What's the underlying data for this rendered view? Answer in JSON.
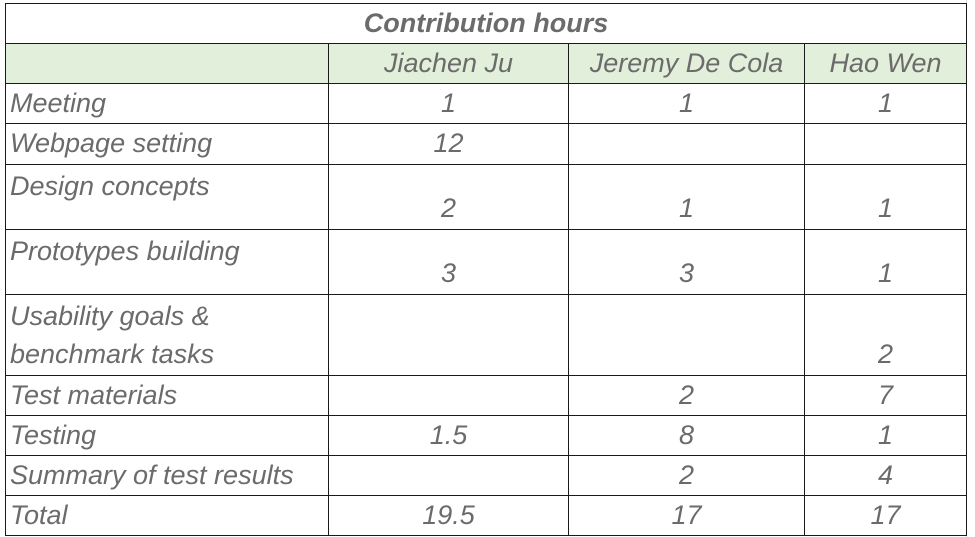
{
  "title": "Contribution hours",
  "columns": [
    "",
    "Jiachen Ju",
    "Jeremy De Cola",
    "Hao Wen"
  ],
  "rows": [
    {
      "task": "Meeting",
      "values": [
        "1",
        "1",
        "1"
      ]
    },
    {
      "task": "Webpage setting",
      "values": [
        "12",
        "",
        ""
      ]
    },
    {
      "task": "Design concepts",
      "values": [
        "2",
        "1",
        "1"
      ]
    },
    {
      "task": "Prototypes building",
      "values": [
        "3",
        "3",
        "1"
      ]
    },
    {
      "task": "Usability goals & benchmark tasks",
      "values": [
        "",
        "",
        "2"
      ]
    },
    {
      "task": "Test materials",
      "values": [
        "",
        "2",
        "7"
      ]
    },
    {
      "task": "Testing",
      "values": [
        "1.5",
        "8",
        "1"
      ]
    },
    {
      "task": "Summary of test results",
      "values": [
        "",
        "2",
        "4"
      ]
    },
    {
      "task": "Total",
      "values": [
        "19.5",
        "17",
        "17"
      ]
    }
  ]
}
